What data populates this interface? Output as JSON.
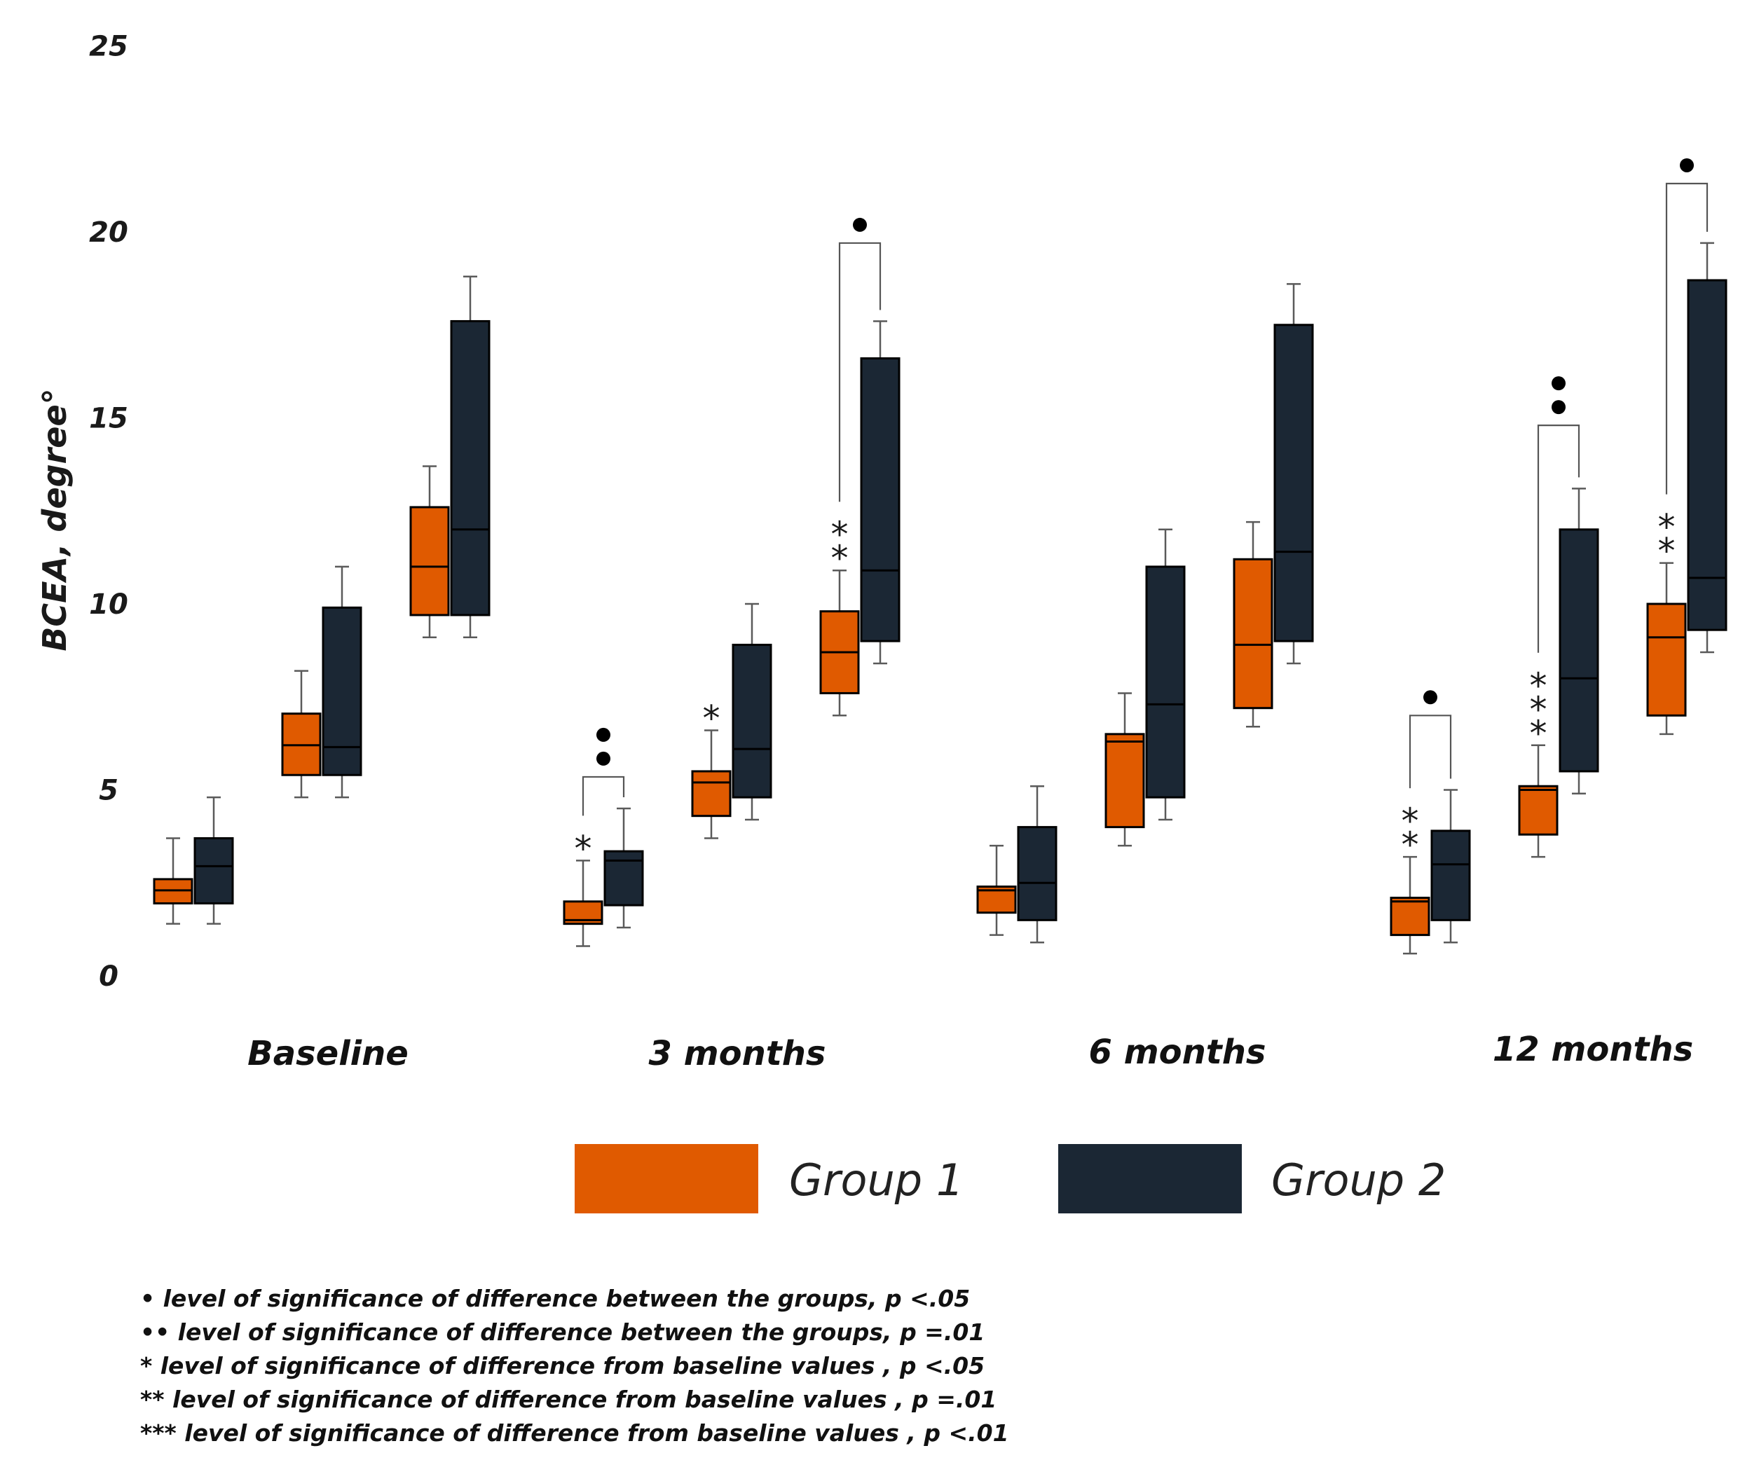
{
  "chart_data": {
    "type": "box",
    "ylabel": "BCEA, degree°",
    "ylim": [
      0,
      25
    ],
    "yticks": [
      0,
      5,
      10,
      15,
      20,
      25
    ],
    "categories": [
      "Baseline",
      "3 months",
      "6 months",
      "12 months"
    ],
    "colors": {
      "Group 1": "#e05a00",
      "Group 2": "#1b2734",
      "outline": "#000000",
      "whisker": "#5a5a5a"
    },
    "legend": [
      "Group 1",
      "Group 2"
    ],
    "clusters": [
      {
        "category": "Baseline",
        "subgroups": [
          {
            "g1": {
              "min": 1.4,
              "q1": 1.95,
              "median": 2.3,
              "q3": 2.6,
              "max": 3.7
            },
            "g2": {
              "min": 1.4,
              "q1": 1.95,
              "median": 2.95,
              "q3": 3.7,
              "max": 4.8
            }
          },
          {
            "g1": {
              "min": 4.8,
              "q1": 5.4,
              "median": 6.2,
              "q3": 7.05,
              "max": 8.2
            },
            "g2": {
              "min": 4.8,
              "q1": 5.4,
              "median": 6.15,
              "q3": 9.9,
              "max": 11.0
            }
          },
          {
            "g1": {
              "min": 9.1,
              "q1": 9.7,
              "median": 11.0,
              "q3": 12.6,
              "max": 13.7
            },
            "g2": {
              "min": 9.1,
              "q1": 9.7,
              "median": 12.0,
              "q3": 17.6,
              "max": 18.8
            }
          }
        ]
      },
      {
        "category": "3 months",
        "subgroups": [
          {
            "g1": {
              "min": 0.8,
              "q1": 1.4,
              "median": 1.5,
              "q3": 2.0,
              "max": 3.1
            },
            "g2": {
              "min": 1.3,
              "q1": 1.9,
              "median": 3.1,
              "q3": 3.35,
              "max": 4.5
            }
          },
          {
            "g1": {
              "min": 3.7,
              "q1": 4.3,
              "median": 5.2,
              "q3": 5.5,
              "max": 6.6
            },
            "g2": {
              "min": 4.2,
              "q1": 4.8,
              "median": 6.1,
              "q3": 8.9,
              "max": 10.0
            }
          },
          {
            "g1": {
              "min": 7.0,
              "q1": 7.6,
              "median": 8.7,
              "q3": 9.8,
              "max": 10.9
            },
            "g2": {
              "min": 8.4,
              "q1": 9.0,
              "median": 10.9,
              "q3": 16.6,
              "max": 17.6
            }
          }
        ]
      },
      {
        "category": "6 months",
        "subgroups": [
          {
            "g1": {
              "min": 1.1,
              "q1": 1.7,
              "median": 2.3,
              "q3": 2.4,
              "max": 3.5
            },
            "g2": {
              "min": 0.9,
              "q1": 1.5,
              "median": 2.5,
              "q3": 4.0,
              "max": 5.1
            }
          },
          {
            "g1": {
              "min": 3.5,
              "q1": 4.0,
              "median": 6.3,
              "q3": 6.5,
              "max": 7.6
            },
            "g2": {
              "min": 4.2,
              "q1": 4.8,
              "median": 7.3,
              "q3": 11.0,
              "max": 12.0
            }
          },
          {
            "g1": {
              "min": 6.7,
              "q1": 7.2,
              "median": 8.9,
              "q3": 11.2,
              "max": 12.2
            },
            "g2": {
              "min": 8.4,
              "q1": 9.0,
              "median": 11.4,
              "q3": 17.5,
              "max": 18.6
            }
          }
        ]
      },
      {
        "category": "12 months",
        "subgroups": [
          {
            "g1": {
              "min": 0.6,
              "q1": 1.1,
              "median": 2.0,
              "q3": 2.1,
              "max": 3.2
            },
            "g2": {
              "min": 0.9,
              "q1": 1.5,
              "median": 3.0,
              "q3": 3.9,
              "max": 5.0
            }
          },
          {
            "g1": {
              "min": 3.2,
              "q1": 3.8,
              "median": 5.0,
              "q3": 5.1,
              "max": 6.2
            },
            "g2": {
              "min": 4.9,
              "q1": 5.5,
              "median": 8.0,
              "q3": 12.0,
              "max": 13.1
            }
          },
          {
            "g1": {
              "min": 6.5,
              "q1": 7.0,
              "median": 9.1,
              "q3": 10.0,
              "max": 11.1
            },
            "g2": {
              "min": 8.7,
              "q1": 9.3,
              "median": 10.7,
              "q3": 18.7,
              "max": 19.7
            }
          }
        ]
      }
    ],
    "annotations": [
      {
        "cluster": 1,
        "subgroup": 0,
        "group": 1,
        "stars": "*"
      },
      {
        "cluster": 1,
        "subgroup": 1,
        "group": 1,
        "stars": "*"
      },
      {
        "cluster": 1,
        "subgroup": 2,
        "group": 1,
        "stars": "**"
      },
      {
        "cluster": 3,
        "subgroup": 0,
        "group": 1,
        "stars": "**"
      },
      {
        "cluster": 3,
        "subgroup": 1,
        "group": 1,
        "stars": "***"
      },
      {
        "cluster": 3,
        "subgroup": 2,
        "group": 1,
        "stars": "**"
      }
    ],
    "brackets": [
      {
        "cluster": 1,
        "subgroup": 0,
        "dots": 2,
        "level": 5.35
      },
      {
        "cluster": 1,
        "subgroup": 2,
        "dots": 1,
        "level": 19.7
      },
      {
        "cluster": 3,
        "subgroup": 0,
        "dots": 1,
        "level": 7.0
      },
      {
        "cluster": 3,
        "subgroup": 1,
        "dots": 2,
        "level": 14.8
      },
      {
        "cluster": 3,
        "subgroup": 2,
        "dots": 1,
        "level": 21.3
      }
    ],
    "notes": [
      "• level of significance of difference between the groups, p <.05",
      "•• level of significance of difference between the groups, p =.01",
      "* level of significance of difference from baseline values , p <.05",
      "** level of significance of difference from baseline values , p =.01",
      "*** level of significance of difference from baseline values , p <.01"
    ]
  }
}
